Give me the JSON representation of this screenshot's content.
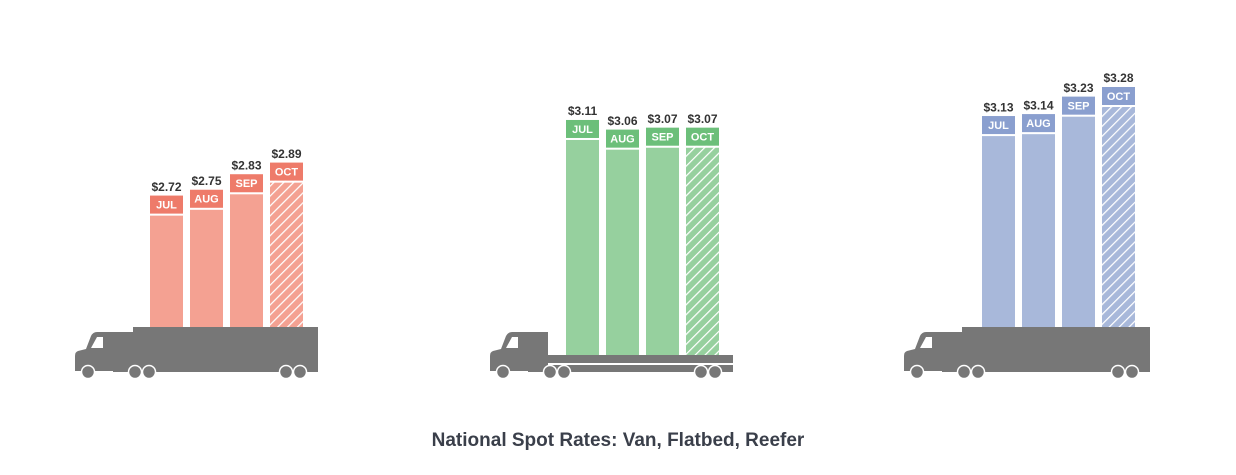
{
  "title": "National Spot Rates: Van, Flatbed, Reefer",
  "chart_data": [
    {
      "type": "bar",
      "categories": [
        "JUL",
        "AUG",
        "SEP",
        "OCT"
      ],
      "values": [
        2.72,
        2.75,
        2.83,
        2.89
      ],
      "value_labels": [
        "$2.72",
        "$2.75",
        "$2.83",
        "$2.89"
      ],
      "color": "#f4a192",
      "label_color": "#ee7b6a"
    },
    {
      "type": "bar",
      "categories": [
        "JUL",
        "AUG",
        "SEP",
        "OCT"
      ],
      "values": [
        3.11,
        3.06,
        3.07,
        3.07
      ],
      "value_labels": [
        "$3.11",
        "$3.06",
        "$3.07",
        "$3.07"
      ],
      "color": "#96d09e",
      "label_color": "#6cbf7a"
    },
    {
      "type": "bar",
      "categories": [
        "JUL",
        "AUG",
        "SEP",
        "OCT"
      ],
      "values": [
        3.13,
        3.14,
        3.23,
        3.28
      ],
      "value_labels": [
        "$3.13",
        "$3.14",
        "$3.23",
        "$3.28"
      ],
      "color": "#a8b8da",
      "label_color": "#8a9fcf"
    }
  ]
}
